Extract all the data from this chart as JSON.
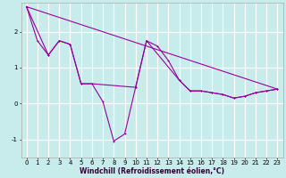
{
  "xlabel": "Windchill (Refroidissement éolien,°C)",
  "bg_color": "#c8ecec",
  "line_color": "#990099",
  "grid_color": "#ffffff",
  "x_ticks": [
    0,
    1,
    2,
    3,
    4,
    5,
    6,
    7,
    8,
    9,
    10,
    11,
    12,
    13,
    14,
    15,
    16,
    17,
    18,
    19,
    20,
    21,
    22,
    23
  ],
  "y_ticks": [
    -1,
    0,
    1,
    2
  ],
  "ylim": [
    -1.5,
    2.8
  ],
  "xlim": [
    -0.5,
    23.5
  ],
  "curve1_x": [
    0,
    1,
    2,
    3,
    4,
    5,
    6,
    7,
    8,
    9,
    10,
    11,
    12,
    13,
    14,
    15,
    16,
    17,
    18,
    19,
    20,
    21,
    22,
    23
  ],
  "curve1_y": [
    2.7,
    1.75,
    1.35,
    1.75,
    1.65,
    0.55,
    0.55,
    0.05,
    -1.05,
    -0.85,
    0.45,
    1.75,
    1.6,
    1.2,
    0.65,
    0.35,
    0.35,
    0.3,
    0.25,
    0.15,
    0.2,
    0.3,
    0.35,
    0.4
  ],
  "line1_x": [
    0,
    23
  ],
  "line1_y": [
    2.7,
    0.4
  ],
  "curve2_x": [
    0,
    2,
    3,
    4,
    5,
    6,
    10,
    11,
    14,
    15,
    16,
    17,
    18,
    19,
    20,
    21,
    22,
    23
  ],
  "curve2_y": [
    2.7,
    1.35,
    1.75,
    1.65,
    0.55,
    0.55,
    0.45,
    1.75,
    0.65,
    0.35,
    0.35,
    0.3,
    0.25,
    0.15,
    0.2,
    0.3,
    0.35,
    0.4
  ],
  "xlabel_fontsize": 5.5,
  "xlabel_color": "#330033",
  "tick_fontsize": 5,
  "lw": 0.8,
  "ms": 2.0
}
